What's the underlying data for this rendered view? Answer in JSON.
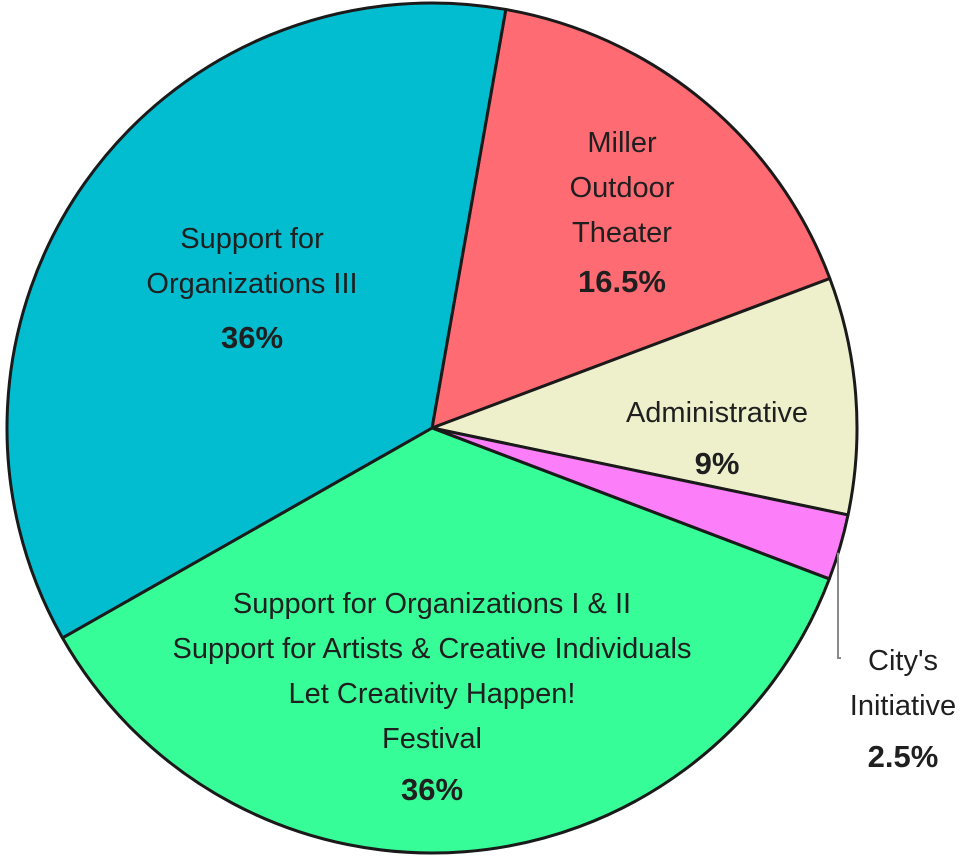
{
  "chart_data": {
    "type": "pie",
    "title": "",
    "slices": [
      {
        "lines": [
          "Miller",
          "Outdoor",
          "Theater"
        ],
        "value": 16.5,
        "percent_label": "16.5%",
        "color": "#fe6b72"
      },
      {
        "lines": [
          "Administrative"
        ],
        "value": 9,
        "percent_label": "9%",
        "color": "#eef0cc"
      },
      {
        "lines": [
          "City's",
          "Initiative"
        ],
        "value": 2.5,
        "percent_label": "2.5%",
        "color": "#fc7ef8"
      },
      {
        "lines": [
          "Support for Organizations I & II",
          "Support for Artists & Creative Individuals",
          "Let Creativity Happen!",
          "Festival"
        ],
        "value": 36,
        "percent_label": "36%",
        "color": "#36fd97"
      },
      {
        "lines": [
          "Support for",
          "Organizations III"
        ],
        "value": 36,
        "percent_label": "36%",
        "color": "#02bdd0"
      }
    ],
    "legend": "none"
  }
}
